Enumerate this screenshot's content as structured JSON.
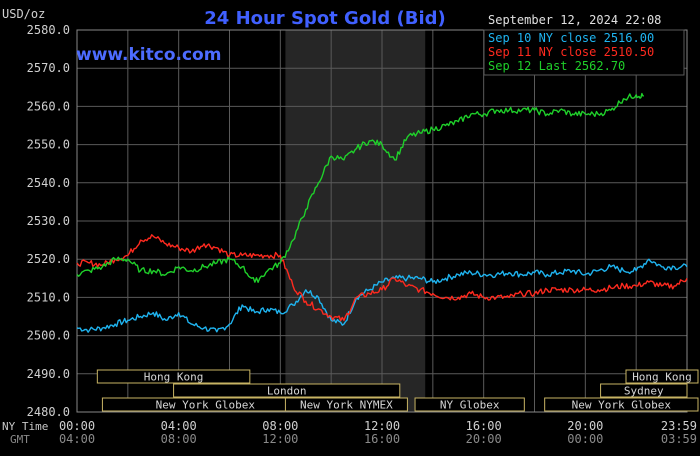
{
  "header": {
    "unit": "USD/oz",
    "title": "24 Hour Spot Gold (Bid)",
    "site": "www.kitco.com",
    "timestamp": "September 12, 2024 22:08"
  },
  "colors": {
    "background": "#000000",
    "plot": "#000000",
    "shade": "#262626",
    "grid": "#5a5a5a",
    "axis_text": "#d0d0d0",
    "title": "#4060ff",
    "site": "#4d6cff",
    "sep10": "#1fb4f0",
    "sep11": "#ff2a1f",
    "sep12": "#1fd02a",
    "session_border": "#c8b464",
    "session_text": "#d6d6d6",
    "ny_time": "#c8c8c8",
    "gmt": "#8a8a8a"
  },
  "chart_data": {
    "type": "line",
    "title": "24 Hour Spot Gold (Bid)",
    "ylabel": "USD/oz",
    "xlim": [
      0,
      24
    ],
    "ylim": [
      2480,
      2580
    ],
    "yticks": [
      "2580.0",
      "2570.0",
      "2560.0",
      "2550.0",
      "2540.0",
      "2530.0",
      "2520.0",
      "2510.0",
      "2500.0",
      "2490.0",
      "2480.0"
    ],
    "x_axis": {
      "label": "NY Time",
      "ticks": [
        "00:00",
        "04:00",
        "08:00",
        "12:00",
        "16:00",
        "20:00",
        "23:59"
      ],
      "gmt_label": "GMT",
      "gmt_ticks": [
        "04:00",
        "08:00",
        "12:00",
        "16:00",
        "20:00",
        "00:00",
        "03:59"
      ]
    },
    "shaded_range": [
      8.2,
      13.7
    ],
    "grid": true,
    "legend": {
      "position": "top-right",
      "entries": [
        "Sep 10 NY close 2516.00",
        "Sep 11 NY close 2510.50",
        "Sep 12 Last 2562.70"
      ]
    },
    "series": [
      {
        "name": "Sep 10",
        "x": [
          0,
          0.5,
          1,
          1.5,
          2,
          2.5,
          3,
          3.5,
          4,
          4.5,
          5,
          5.5,
          6,
          6.5,
          7,
          7.5,
          8,
          8.5,
          9,
          9.5,
          10,
          10.5,
          11,
          11.5,
          12,
          12.5,
          13,
          13.5,
          14,
          14.5,
          15,
          15.5,
          16,
          16.5,
          17,
          17.5,
          18,
          18.5,
          19,
          19.5,
          20,
          20.5,
          21,
          21.5,
          22,
          22.5,
          23,
          23.5,
          24
        ],
        "values": [
          2502,
          2501.5,
          2502,
          2503,
          2504,
          2505,
          2506,
          2504,
          2506,
          2503,
          2502,
          2501,
          2503,
          2508,
          2506,
          2507,
          2506,
          2508,
          2512,
          2510,
          2504,
          2503,
          2510,
          2512,
          2514,
          2515,
          2515,
          2515,
          2514,
          2515,
          2516,
          2516.5,
          2516,
          2516,
          2516.5,
          2516,
          2516.5,
          2516,
          2516.5,
          2517,
          2516,
          2517,
          2518,
          2517,
          2517,
          2520,
          2518,
          2518,
          2518
        ]
      },
      {
        "name": "Sep 11",
        "x": [
          0,
          0.5,
          1,
          1.5,
          2,
          2.5,
          3,
          3.5,
          4,
          4.5,
          5,
          5.5,
          6,
          6.5,
          7,
          7.5,
          8,
          8.5,
          9,
          9.5,
          10,
          10.5,
          11,
          11.5,
          12,
          12.5,
          13,
          13.5,
          14,
          14.5,
          15,
          15.5,
          16,
          16.5,
          17,
          17.5,
          18,
          18.5,
          19,
          19.5,
          20,
          20.5,
          21,
          21.5,
          22,
          22.5,
          23,
          23.5,
          24
        ],
        "values": [
          2519,
          2519,
          2518.5,
          2520,
          2521,
          2525,
          2526,
          2524,
          2523,
          2522,
          2524,
          2523,
          2521,
          2521,
          2521,
          2521,
          2521,
          2513,
          2509,
          2507,
          2505,
          2504,
          2510,
          2511,
          2512,
          2515,
          2513,
          2512,
          2511,
          2510,
          2510,
          2511,
          2510,
          2510,
          2510,
          2511,
          2511,
          2512,
          2512,
          2512,
          2512,
          2512,
          2512.5,
          2513,
          2513,
          2514,
          2513,
          2513,
          2515
        ]
      },
      {
        "name": "Sep 12",
        "x": [
          0,
          0.5,
          1,
          1.5,
          2,
          2.5,
          3,
          3.5,
          4,
          4.5,
          5,
          5.5,
          6,
          6.5,
          7,
          7.5,
          8,
          8.5,
          9,
          9.5,
          10,
          10.5,
          11,
          11.5,
          12,
          12.5,
          13,
          13.5,
          14,
          14.5,
          15,
          15.5,
          16,
          16.5,
          17,
          17.5,
          18,
          18.5,
          19,
          19.5,
          20,
          20.5,
          21,
          21.5,
          22,
          22.3
        ],
        "values": [
          2516,
          2517,
          2518,
          2520,
          2520,
          2517,
          2517,
          2516,
          2518,
          2517,
          2518,
          2519,
          2520,
          2518,
          2514,
          2517,
          2519,
          2525,
          2533,
          2540,
          2547,
          2546,
          2549,
          2551,
          2550,
          2546,
          2552,
          2553,
          2554,
          2555,
          2556,
          2558,
          2558,
          2559,
          2559,
          2559,
          2559,
          2558,
          2559,
          2558,
          2558,
          2558,
          2559,
          2562,
          2563,
          2562.7
        ]
      }
    ],
    "sessions": [
      {
        "label": "Hong Kong",
        "row": 0,
        "start": 0.8,
        "end": 6.8
      },
      {
        "label": "Hong Kong",
        "row": 0,
        "start": 21.6,
        "end": 25
      },
      {
        "label": "London",
        "row": 1,
        "start": 3.8,
        "end": 12.7
      },
      {
        "label": "Sydney",
        "row": 1,
        "start": 20.6,
        "end": 24
      },
      {
        "label": "New York Globex",
        "row": 2,
        "start": 1.0,
        "end": 9.1
      },
      {
        "label": "New York NYMEX",
        "row": 2,
        "start": 8.2,
        "end": 13.0
      },
      {
        "label": "NY Globex",
        "row": 2,
        "start": 13.3,
        "end": 17.6
      },
      {
        "label": "New York Globex",
        "row": 2,
        "start": 18.4,
        "end": 25
      }
    ]
  }
}
